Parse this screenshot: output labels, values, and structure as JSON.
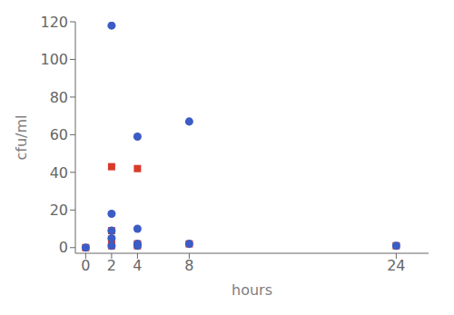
{
  "chart_data": {
    "type": "scatter",
    "xlabel": "hours",
    "ylabel": "cfu/ml",
    "xlim": [
      -0.8,
      26.5
    ],
    "ylim": [
      -3,
      120
    ],
    "xticks": [
      0,
      2,
      4,
      8,
      24
    ],
    "yticks": [
      0,
      20,
      40,
      60,
      80,
      100,
      120
    ],
    "grid": false,
    "series": [
      {
        "color": "#3B5CC4",
        "marker": "circle",
        "x": [
          0,
          2,
          2,
          2,
          2,
          2,
          4,
          4,
          4,
          4,
          8,
          8,
          24
        ],
        "values": [
          0,
          118,
          18,
          9,
          5,
          1,
          59,
          10,
          2,
          1,
          67,
          2,
          1
        ]
      },
      {
        "color": "#D93A2B",
        "marker": "square",
        "x": [
          0,
          2,
          2,
          2,
          2,
          4,
          4,
          4,
          8,
          24
        ],
        "values": [
          0,
          43,
          9,
          4,
          1,
          42,
          2,
          1,
          2,
          1
        ]
      }
    ]
  }
}
